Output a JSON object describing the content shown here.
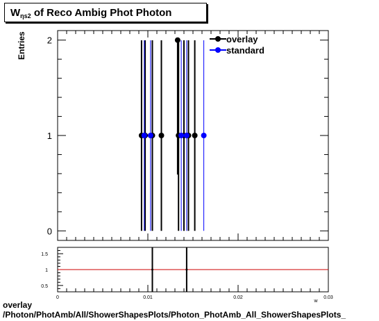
{
  "title": {
    "symbol": "W",
    "subscript": "ηs2",
    "text": "of Reco Ambig Phot Photon"
  },
  "footer": {
    "line1": "overlay",
    "line2": "/Photon/PhotAmb/All/ShowerShapesPlots/Photon_PhotAmb_All_ShowerShapesPlots_"
  },
  "chart_data": [
    {
      "type": "scatter",
      "ylabel": "Entries",
      "ylim": [
        -0.1,
        2.1
      ],
      "xlim": [
        0,
        0.03
      ],
      "yticks": [
        0,
        1,
        2
      ],
      "legend_position": "top-right",
      "series": [
        {
          "name": "overlay",
          "color": "#000000",
          "points": [
            [
              0.0093,
              1
            ],
            [
              0.0097,
              1
            ],
            [
              0.0105,
              1
            ],
            [
              0.0115,
              1
            ],
            [
              0.0133,
              2
            ],
            [
              0.0134,
              1
            ],
            [
              0.014,
              1
            ],
            [
              0.0145,
              1
            ],
            [
              0.0152,
              1
            ]
          ],
          "errors": [
            1,
            1,
            1,
            1,
            1.41,
            1,
            1,
            1,
            1
          ]
        },
        {
          "name": "standard",
          "color": "#0000ff",
          "points": [
            [
              0.0096,
              1
            ],
            [
              0.0103,
              1
            ],
            [
              0.0137,
              1
            ],
            [
              0.0143,
              1
            ],
            [
              0.0162,
              1
            ]
          ],
          "errors": [
            1,
            1,
            1,
            1,
            1
          ]
        }
      ]
    },
    {
      "type": "line",
      "ylim": [
        0.3,
        1.7
      ],
      "yticks": [
        0.5,
        1,
        1.5
      ],
      "ytick_labels": [
        "0.5",
        "1",
        "1.5"
      ],
      "xlim": [
        0,
        0.03
      ],
      "xticks": [
        0,
        0.01,
        0.02,
        0.03
      ],
      "xtick_labels": [
        "0",
        "0.01",
        "0.02",
        "0.03"
      ],
      "xlabel": "w",
      "reference_line": 1,
      "reference_color": "#cc0000",
      "ratio_points": [
        [
          0.0105,
          1
        ],
        [
          0.0143,
          1
        ]
      ],
      "ratio_errors": [
        1.7,
        1.7
      ]
    }
  ]
}
